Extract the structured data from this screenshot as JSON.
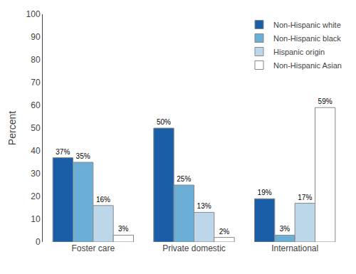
{
  "chart_data": {
    "type": "bar",
    "categories": [
      "Foster care",
      "Private domestic",
      "International"
    ],
    "series": [
      {
        "name": "Non-Hispanic white",
        "color": "#1a5ea8",
        "values": [
          37,
          50,
          19
        ],
        "value_labels": [
          "37%",
          "50%",
          "19%"
        ]
      },
      {
        "name": "Non-Hispanic black",
        "color": "#6baed6",
        "values": [
          35,
          25,
          3
        ],
        "value_labels": [
          "35%",
          "25%",
          "3%"
        ]
      },
      {
        "name": "Hispanic origin",
        "color": "#bdd7ea",
        "values": [
          16,
          13,
          17
        ],
        "value_labels": [
          "16%",
          "13%",
          "17%"
        ]
      },
      {
        "name": "Non-Hispanic Asian",
        "color": "#ffffff",
        "values": [
          3,
          2,
          59
        ],
        "value_labels": [
          "3%",
          "2%",
          "59%"
        ]
      }
    ],
    "y_label": "Percent",
    "ylim": [
      0,
      100
    ],
    "yticks": [
      0,
      10,
      20,
      30,
      40,
      50,
      60,
      70,
      80,
      90,
      100
    ],
    "grid": false,
    "legend": "upper right",
    "data_labels": true
  }
}
